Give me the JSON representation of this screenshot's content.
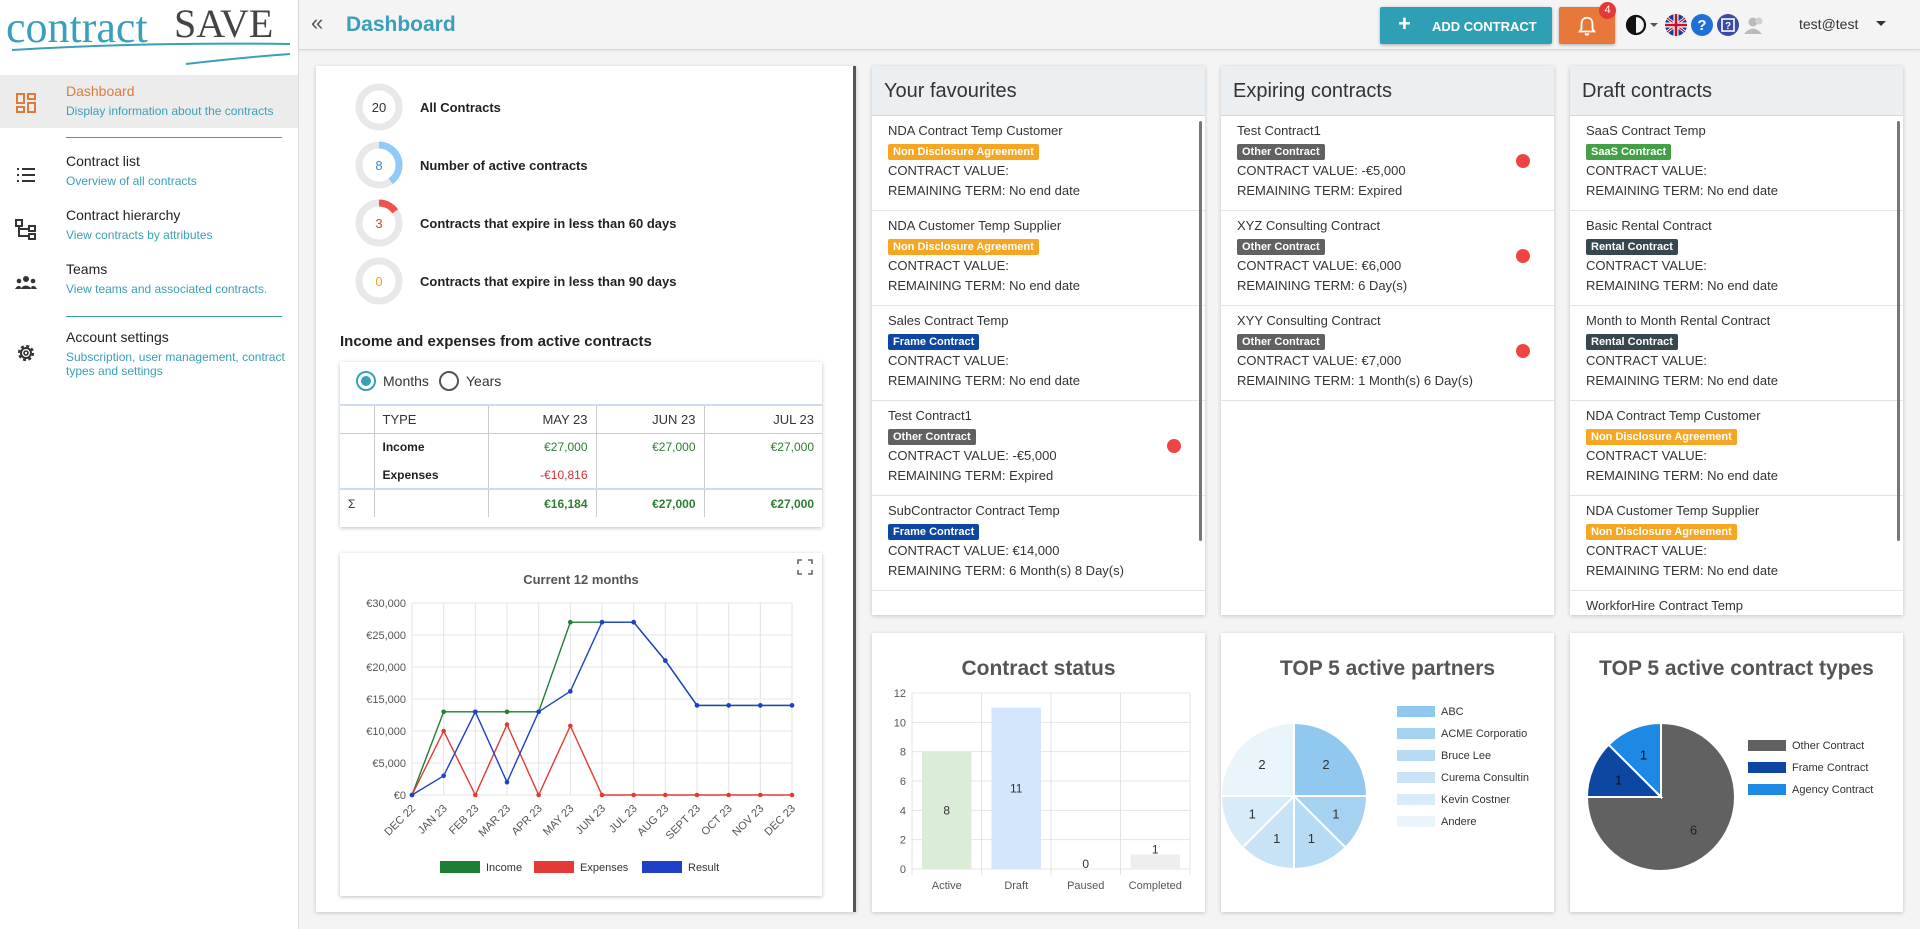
{
  "logo": {
    "text_left": "contract",
    "text_right": "SAVE"
  },
  "sidebar": {
    "items": [
      {
        "label": "Dashboard",
        "sub": "Display information about the contracts"
      },
      {
        "label": "Contract list",
        "sub": "Overview of all contracts"
      },
      {
        "label": "Contract hierarchy",
        "sub": "View contracts by attributes"
      },
      {
        "label": "Teams",
        "sub": "View teams and associated contracts."
      },
      {
        "label": "Account settings",
        "sub": "Subscription, user management, contract types and settings"
      }
    ]
  },
  "topbar": {
    "title": "Dashboard",
    "add_label": "ADD CONTRACT",
    "notifications": "4",
    "user": "test@test"
  },
  "kpis": [
    {
      "value": "20",
      "label": "All Contracts",
      "color": "#cccccc",
      "fraction": 0
    },
    {
      "value": "8",
      "label": "Number of active contracts",
      "color": "#90caf9",
      "fraction": 0.4
    },
    {
      "value": "3",
      "label": "Contracts that expire in less than 60 days",
      "color": "#ef5350",
      "fraction": 0.15
    },
    {
      "value": "0",
      "label": "Contracts that expire in less than 90 days",
      "color": "#f0a030",
      "fraction": 0
    }
  ],
  "income": {
    "title": "Income and expenses from active contracts",
    "radio_months": "Months",
    "radio_years": "Years",
    "headers": [
      "TYPE",
      "MAY 23",
      "JUN 23",
      "JUL 23"
    ],
    "rows": [
      {
        "type": "Income",
        "values": [
          "€27,000",
          "€27,000",
          "€27,000"
        ]
      },
      {
        "type": "Expenses",
        "values": [
          "-€10,816",
          "",
          ""
        ]
      }
    ],
    "sum_symbol": "Σ",
    "sum": [
      "€16,184",
      "€27,000",
      "€27,000"
    ]
  },
  "line_chart_data": {
    "type": "line",
    "title": "Current 12 months",
    "categories": [
      "DEC 22",
      "JAN 23",
      "FEB 23",
      "MAR 23",
      "APR 23",
      "MAY 23",
      "JUN 23",
      "JUL 23",
      "AUG 23",
      "SEPT 23",
      "OCT 23",
      "NOV 23",
      "DEC 23"
    ],
    "yticks": [
      "€0",
      "€5,000",
      "€10,000",
      "€15,000",
      "€20,000",
      "€25,000",
      "€30,000"
    ],
    "ylim": [
      0,
      30000
    ],
    "series": [
      {
        "name": "Income",
        "color": "#1e7e34",
        "values": [
          0,
          13000,
          13000,
          13000,
          13000,
          27000,
          27000,
          27000,
          21000,
          14000,
          14000,
          14000,
          14000
        ]
      },
      {
        "name": "Expenses",
        "color": "#e53935",
        "values": [
          0,
          10000,
          0,
          11000,
          0,
          10800,
          0,
          0,
          0,
          0,
          0,
          0,
          0
        ]
      },
      {
        "name": "Result",
        "color": "#1e40c8",
        "values": [
          0,
          3000,
          13000,
          2000,
          13000,
          16200,
          27000,
          27000,
          21000,
          14000,
          14000,
          14000,
          14000
        ]
      }
    ]
  },
  "favourites": {
    "title": "Your favourites",
    "items": [
      {
        "name": "NDA Contract Temp Customer",
        "badge": "Non Disclosure Agreement",
        "badge_color": "#f5a623",
        "value": "CONTRACT VALUE:",
        "term": "REMAINING TERM: No end date",
        "dot": false
      },
      {
        "name": "NDA Customer Temp Supplier",
        "badge": "Non Disclosure Agreement",
        "badge_color": "#f5a623",
        "value": "CONTRACT VALUE:",
        "term": "REMAINING TERM: No end date",
        "dot": false
      },
      {
        "name": "Sales Contract Temp",
        "badge": "Frame Contract",
        "badge_color": "#0d47a1",
        "value": "CONTRACT VALUE:",
        "term": "REMAINING TERM: No end date",
        "dot": false
      },
      {
        "name": "Test Contract1",
        "badge": "Other Contract",
        "badge_color": "#616161",
        "value": "CONTRACT VALUE: -€5,000",
        "term": "REMAINING TERM: Expired",
        "dot": true
      },
      {
        "name": "SubContractor Contract Temp",
        "badge": "Frame Contract",
        "badge_color": "#0d47a1",
        "value": "CONTRACT VALUE: €14,000",
        "term": "REMAINING TERM: 6 Month(s) 8 Day(s)",
        "dot": false
      }
    ]
  },
  "expiring": {
    "title": "Expiring contracts",
    "items": [
      {
        "name": "Test Contract1",
        "badge": "Other Contract",
        "badge_color": "#616161",
        "value": "CONTRACT VALUE: -€5,000",
        "term": "REMAINING TERM: Expired",
        "dot": true
      },
      {
        "name": "XYZ Consulting Contract",
        "badge": "Other Contract",
        "badge_color": "#616161",
        "value": "CONTRACT VALUE: €6,000",
        "term": "REMAINING TERM: 6 Day(s)",
        "dot": true
      },
      {
        "name": "XYY Consulting Contract",
        "badge": "Other Contract",
        "badge_color": "#616161",
        "value": "CONTRACT VALUE: €7,000",
        "term": "REMAINING TERM: 1 Month(s) 6 Day(s)",
        "dot": true
      }
    ]
  },
  "drafts": {
    "title": "Draft contracts",
    "items": [
      {
        "name": "SaaS Contract Temp",
        "badge": "SaaS Contract",
        "badge_color": "#43a047",
        "value": "CONTRACT VALUE:",
        "term": "REMAINING TERM: No end date",
        "dot": false
      },
      {
        "name": "Basic Rental Contract",
        "badge": "Rental Contract",
        "badge_color": "#37474f",
        "value": "CONTRACT VALUE:",
        "term": "REMAINING TERM: No end date",
        "dot": false
      },
      {
        "name": "Month to Month Rental Contract",
        "badge": "Rental Contract",
        "badge_color": "#37474f",
        "value": "CONTRACT VALUE:",
        "term": "REMAINING TERM: No end date",
        "dot": false
      },
      {
        "name": "NDA Contract Temp Customer",
        "badge": "Non Disclosure Agreement",
        "badge_color": "#f5a623",
        "value": "CONTRACT VALUE:",
        "term": "REMAINING TERM: No end date",
        "dot": false
      },
      {
        "name": "NDA Customer Temp Supplier",
        "badge": "Non Disclosure Agreement",
        "badge_color": "#f5a623",
        "value": "CONTRACT VALUE:",
        "term": "REMAINING TERM: No end date",
        "dot": false
      },
      {
        "name": "WorkforHire Contract Temp",
        "badge": "",
        "badge_color": "#616161",
        "value": "",
        "term": "",
        "dot": false
      }
    ]
  },
  "chart_data": [
    {
      "type": "bar",
      "title": "Contract status",
      "categories": [
        "Active",
        "Draft",
        "Paused",
        "Completed"
      ],
      "values": [
        8,
        11,
        0,
        1
      ],
      "colors": [
        "#dcedd7",
        "#d4e6fb",
        "#eeeeee",
        "#eeeeee"
      ],
      "yticks": [
        "0",
        "2",
        "4",
        "6",
        "8",
        "10",
        "12"
      ],
      "ylim": [
        0,
        12
      ]
    },
    {
      "type": "pie",
      "title": "TOP 5 active partners",
      "labels": [
        "ABC",
        "ACME Corporatio",
        "Bruce Lee",
        "Curema Consultin",
        "Kevin Costner",
        "Andere"
      ],
      "values": [
        2,
        1,
        1,
        1,
        1,
        2
      ],
      "colors": [
        "#90c8f0",
        "#a6d2f2",
        "#b7dbf4",
        "#c8e3f6",
        "#d7ebf8",
        "#e9f4fb"
      ]
    },
    {
      "type": "pie",
      "title": "TOP 5 active contract types",
      "labels": [
        "Other Contract",
        "Frame Contract",
        "Agency Contract"
      ],
      "values": [
        6,
        1,
        1
      ],
      "colors": [
        "#616161",
        "#0d47a1",
        "#1e88e5"
      ]
    }
  ]
}
